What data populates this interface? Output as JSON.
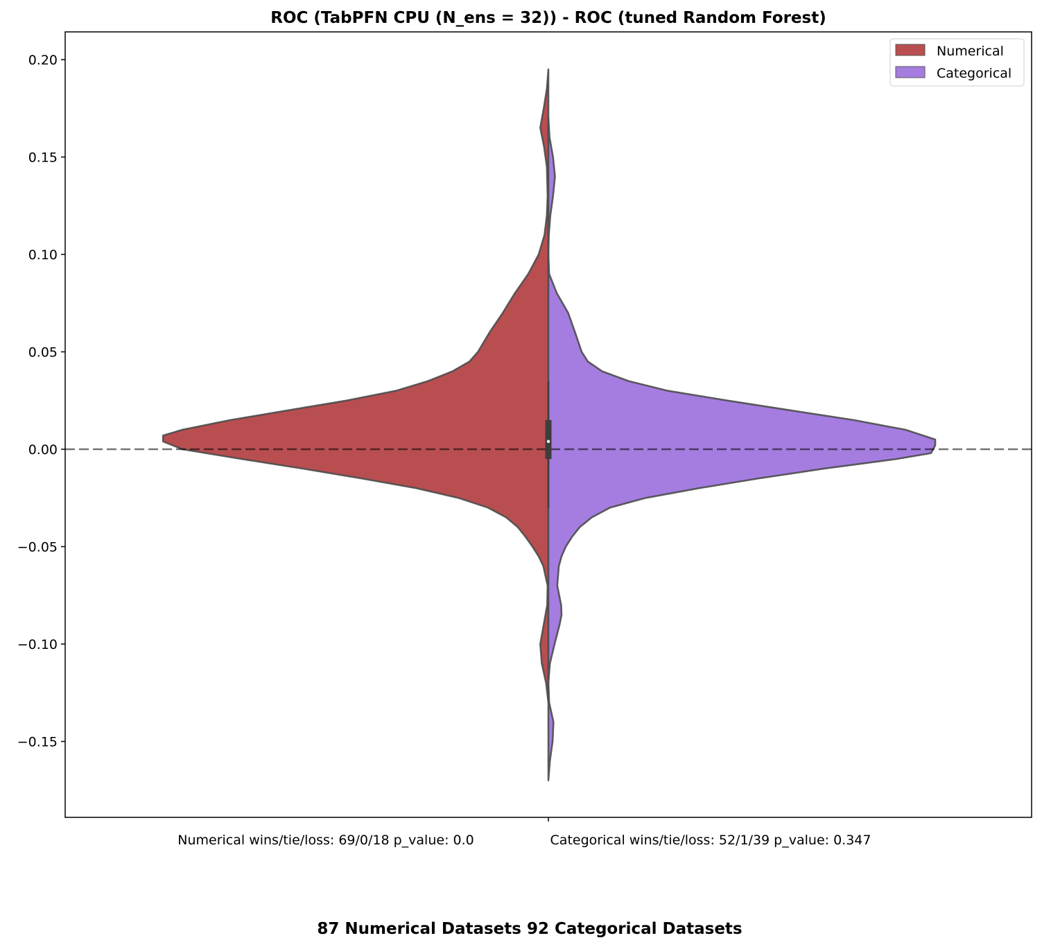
{
  "chart_data": {
    "type": "violin",
    "title": "ROC (TabPFN CPU (N_ens = 32)) - ROC (tuned Random Forest)",
    "xlabel": "87 Numerical Datasets 92 Categorical Datasets",
    "ylabel": "",
    "ylim": [
      -0.19,
      0.215
    ],
    "yticks": [
      0.2,
      0.15,
      0.1,
      0.05,
      0.0,
      -0.05,
      -0.1,
      -0.15
    ],
    "ytick_labels": [
      "0.20",
      "0.15",
      "0.10",
      "0.05",
      "0.00",
      "−0.05",
      "−0.10",
      "−0.15"
    ],
    "category_annotations": [
      "Numerical wins/tie/loss: 69/0/18 p_value: 0.0",
      "Categorical wins/tie/loss: 52/1/39 p_value: 0.347"
    ],
    "reference_line": {
      "y": 0,
      "style": "dashed"
    },
    "legend": {
      "placement": "top-right",
      "entries": [
        "Numerical",
        "Categorical"
      ]
    },
    "box": {
      "q1": -0.005,
      "q3": 0.015,
      "median": 0.004,
      "whisker_low": -0.03,
      "whisker_high": 0.035
    },
    "series": [
      {
        "name": "Numerical",
        "side": "left",
        "color": "#b94e50",
        "density": [
          [
            0.195,
            0.0
          ],
          [
            0.185,
            0.004
          ],
          [
            0.175,
            0.012
          ],
          [
            0.165,
            0.021
          ],
          [
            0.155,
            0.011
          ],
          [
            0.145,
            0.004
          ],
          [
            0.13,
            0.002
          ],
          [
            0.12,
            0.004
          ],
          [
            0.11,
            0.01
          ],
          [
            0.1,
            0.025
          ],
          [
            0.09,
            0.052
          ],
          [
            0.08,
            0.087
          ],
          [
            0.07,
            0.118
          ],
          [
            0.06,
            0.152
          ],
          [
            0.05,
            0.182
          ],
          [
            0.045,
            0.204
          ],
          [
            0.04,
            0.248
          ],
          [
            0.035,
            0.311
          ],
          [
            0.03,
            0.394
          ],
          [
            0.025,
            0.522
          ],
          [
            0.02,
            0.672
          ],
          [
            0.015,
            0.822
          ],
          [
            0.01,
            0.946
          ],
          [
            0.007,
            0.996
          ],
          [
            0.004,
            0.996
          ],
          [
            0.0,
            0.946
          ],
          [
            -0.005,
            0.794
          ],
          [
            -0.01,
            0.633
          ],
          [
            -0.015,
            0.483
          ],
          [
            -0.02,
            0.341
          ],
          [
            -0.025,
            0.232
          ],
          [
            -0.03,
            0.156
          ],
          [
            -0.035,
            0.109
          ],
          [
            -0.04,
            0.079
          ],
          [
            -0.045,
            0.059
          ],
          [
            -0.05,
            0.041
          ],
          [
            -0.055,
            0.025
          ],
          [
            -0.06,
            0.013
          ],
          [
            -0.07,
            0.002
          ],
          [
            -0.08,
            0.003
          ],
          [
            -0.09,
            0.012
          ],
          [
            -0.1,
            0.021
          ],
          [
            -0.11,
            0.017
          ],
          [
            -0.12,
            0.006
          ],
          [
            -0.13,
            0.0
          ]
        ]
      },
      {
        "name": "Categorical",
        "side": "right",
        "color": "#a57de0",
        "density": [
          [
            0.17,
            0.0
          ],
          [
            0.16,
            0.003
          ],
          [
            0.15,
            0.012
          ],
          [
            0.14,
            0.017
          ],
          [
            0.13,
            0.012
          ],
          [
            0.12,
            0.005
          ],
          [
            0.11,
            0.001
          ],
          [
            0.1,
            0.0
          ],
          [
            0.09,
            0.002
          ],
          [
            0.08,
            0.022
          ],
          [
            0.07,
            0.051
          ],
          [
            0.06,
            0.069
          ],
          [
            0.05,
            0.086
          ],
          [
            0.045,
            0.102
          ],
          [
            0.04,
            0.139
          ],
          [
            0.035,
            0.207
          ],
          [
            0.03,
            0.309
          ],
          [
            0.025,
            0.463
          ],
          [
            0.02,
            0.625
          ],
          [
            0.015,
            0.789
          ],
          [
            0.01,
            0.923
          ],
          [
            0.005,
            1.0
          ],
          [
            0.002,
            1.0
          ],
          [
            -0.002,
            0.989
          ],
          [
            -0.005,
            0.901
          ],
          [
            -0.01,
            0.711
          ],
          [
            -0.015,
            0.543
          ],
          [
            -0.02,
            0.389
          ],
          [
            -0.025,
            0.251
          ],
          [
            -0.03,
            0.159
          ],
          [
            -0.035,
            0.112
          ],
          [
            -0.04,
            0.081
          ],
          [
            -0.045,
            0.061
          ],
          [
            -0.05,
            0.045
          ],
          [
            -0.055,
            0.034
          ],
          [
            -0.06,
            0.027
          ],
          [
            -0.07,
            0.023
          ],
          [
            -0.08,
            0.033
          ],
          [
            -0.085,
            0.034
          ],
          [
            -0.09,
            0.029
          ],
          [
            -0.1,
            0.016
          ],
          [
            -0.11,
            0.004
          ],
          [
            -0.12,
            0.0
          ],
          [
            -0.13,
            0.002
          ],
          [
            -0.14,
            0.013
          ],
          [
            -0.15,
            0.011
          ],
          [
            -0.16,
            0.004
          ],
          [
            -0.17,
            0.0
          ]
        ]
      }
    ]
  }
}
